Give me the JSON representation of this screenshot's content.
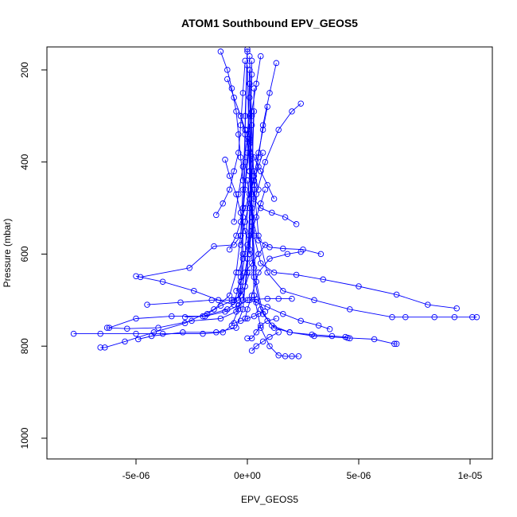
{
  "chart_data": {
    "type": "scatter",
    "title": "ATOM1 Southbound EPV_GEOS5",
    "xlabel": "EPV_GEOS5",
    "ylabel": "Pressure (mbar)",
    "xlim": [
      -9e-06,
      1.1e-05
    ],
    "ylim": [
      1045,
      150
    ],
    "y_reversed": true,
    "x_ticks": [
      {
        "value": -5e-06,
        "label": "-5e-06"
      },
      {
        "value": 0,
        "label": "0e+00"
      },
      {
        "value": 5e-06,
        "label": "5e-06"
      },
      {
        "value": 1e-05,
        "label": "1e-05"
      }
    ],
    "y_ticks": [
      {
        "value": 200,
        "label": "200"
      },
      {
        "value": 400,
        "label": "400"
      },
      {
        "value": 600,
        "label": "600"
      },
      {
        "value": 800,
        "label": "800"
      },
      {
        "value": 1000,
        "label": "1000"
      }
    ],
    "grid": false,
    "legend": "none",
    "series_color": "#0000ff",
    "marker": "open-circle",
    "connected": true,
    "series": [
      {
        "x": [
          -7.8e-06,
          -6.6e-06,
          -5e-06,
          -3.8e-06,
          -2e-06,
          -1.1e-06,
          -7e-07,
          -4e-07,
          -3e-07,
          -2e-07,
          -2e-07,
          -1e-07,
          -1e-07,
          0.0
        ],
        "y": [
          773,
          773,
          773,
          773,
          773,
          770,
          755,
          720,
          680,
          600,
          500,
          400,
          300,
          155
        ]
      },
      {
        "x": [
          -6.6e-06,
          -6.4e-06,
          -5.5e-06,
          -4.2e-06,
          -2.8e-06,
          -1.5e-06,
          -8e-07,
          -5e-07,
          -3e-07,
          -2e-07,
          -1e-07,
          0.0
        ],
        "y": [
          803,
          803,
          790,
          770,
          750,
          720,
          690,
          640,
          560,
          460,
          330,
          160
        ]
      },
      {
        "x": [
          -5e-06,
          -3.8e-06,
          -2.4e-06,
          -1.3e-06,
          -6e-07,
          -3e-07,
          -2e-07,
          0.0,
          1e-07
        ],
        "y": [
          648,
          660,
          680,
          700,
          710,
          650,
          520,
          380,
          200
        ]
      },
      {
        "x": [
          -6.2e-06,
          -5e-06,
          -3.4e-06,
          -2e-06,
          -9e-07,
          -4e-07,
          -1e-07,
          1e-07,
          2e-07
        ],
        "y": [
          760,
          740,
          735,
          735,
          720,
          700,
          600,
          420,
          180
        ]
      },
      {
        "x": [
          -4.5e-06,
          -3e-06,
          -1.6e-06,
          -7e-07,
          -3e-07,
          0.0,
          2e-07,
          3e-07
        ],
        "y": [
          710,
          705,
          700,
          700,
          690,
          610,
          470,
          240
        ]
      },
      {
        "x": [
          -4.9e-06,
          -4.3e-06,
          -2.9e-06,
          -1.4e-06,
          -5e-07,
          -2e-07,
          1e-07,
          3e-07
        ],
        "y": [
          785,
          778,
          770,
          770,
          760,
          720,
          560,
          290
        ]
      },
      {
        "x": [
          -4.8e-06,
          -2.6e-06,
          -1.5e-06,
          -6e-07,
          -3e-07,
          -1e-07,
          1e-07,
          2e-07
        ],
        "y": [
          650,
          630,
          583,
          580,
          560,
          460,
          350,
          210
        ]
      },
      {
        "x": [
          -6.3e-06,
          -5.4e-06,
          -4e-06,
          -2.5e-06,
          -1.2e-06,
          -5e-07,
          -2e-07,
          0.0,
          1e-07,
          2e-07
        ],
        "y": [
          760,
          762,
          760,
          745,
          740,
          725,
          700,
          640,
          500,
          300
        ]
      },
      {
        "x": [
          1.03e-05,
          1.01e-05,
          9.3e-06,
          8.4e-06,
          7.1e-06,
          6.5e-06,
          4.6e-06,
          3e-06,
          1.6e-06,
          9e-07,
          5e-07,
          3e-07,
          2e-07,
          1e-07
        ],
        "y": [
          737,
          737,
          737,
          737,
          737,
          737,
          720,
          700,
          680,
          640,
          560,
          450,
          320,
          170
        ]
      },
      {
        "x": [
          9.4e-06,
          8.1e-06,
          6.7e-06,
          5e-06,
          3.4e-06,
          2.2e-06,
          1.2e-06,
          6e-07,
          3e-07,
          1e-07,
          0.0
        ],
        "y": [
          718,
          710,
          688,
          670,
          655,
          645,
          640,
          620,
          560,
          420,
          190
        ]
      },
      {
        "x": [
          6.7e-06,
          6.6e-06,
          5.7e-06,
          4.5e-06,
          3e-06,
          1.9e-06,
          1.1e-06,
          6e-07,
          3e-07,
          2e-07,
          1e-07
        ],
        "y": [
          795,
          795,
          785,
          782,
          778,
          770,
          755,
          720,
          650,
          500,
          230
        ]
      },
      {
        "x": [
          4.6e-06,
          4.4e-06,
          3.8e-06,
          2.9e-06,
          1.9e-06,
          1.2e-06,
          7e-07,
          4e-07,
          2e-07,
          1e-07
        ],
        "y": [
          783,
          780,
          778,
          775,
          770,
          760,
          730,
          660,
          520,
          260
        ]
      },
      {
        "x": [
          2.3e-06,
          2e-06,
          1.7e-06,
          1.4e-06,
          1e-06,
          6e-07,
          3e-07,
          2e-07,
          1e-07
        ],
        "y": [
          822,
          822,
          822,
          820,
          800,
          760,
          690,
          520,
          300
        ]
      },
      {
        "x": [
          2.4e-06,
          2e-06,
          1.4e-06,
          8e-07,
          4e-07,
          2e-07,
          0.0
        ],
        "y": [
          273,
          290,
          330,
          400,
          470,
          540,
          610
        ]
      },
      {
        "x": [
          2.2e-06,
          1.7e-06,
          1.1e-06,
          6e-07,
          3e-07,
          1e-07,
          0.0
        ],
        "y": [
          535,
          520,
          510,
          500,
          480,
          420,
          330
        ]
      },
      {
        "x": [
          3.3e-06,
          2.5e-06,
          1.6e-06,
          1e-06,
          5e-07,
          2e-07,
          0.0
        ],
        "y": [
          600,
          590,
          588,
          585,
          570,
          520,
          440
        ]
      },
      {
        "x": [
          2.4e-06,
          1.8e-06,
          1e-06,
          5e-07,
          2e-07,
          0.0,
          -1e-07
        ],
        "y": [
          595,
          600,
          610,
          640,
          690,
          720,
          740
        ]
      },
      {
        "x": [
          3.7e-06,
          3.2e-06,
          2.4e-06,
          1.6e-06,
          9e-07,
          4e-07,
          1e-07
        ],
        "y": [
          763,
          755,
          745,
          730,
          715,
          705,
          700
        ]
      },
      {
        "x": [
          1.3e-06,
          1e-06,
          7e-07,
          5e-07,
          3e-07,
          2e-07,
          1e-07
        ],
        "y": [
          185,
          250,
          320,
          390,
          460,
          530,
          600
        ]
      },
      {
        "x": [
          -1.2e-06,
          -9e-07,
          -7e-07,
          -5e-07,
          -4e-07,
          -3e-07,
          -2e-07
        ],
        "y": [
          160,
          200,
          240,
          290,
          340,
          390,
          440
        ]
      },
      {
        "x": [
          -1.4e-06,
          -1.1e-06,
          -8e-07,
          -6e-07,
          -4e-07,
          -3e-07,
          -2e-07,
          -1e-07
        ],
        "y": [
          515,
          490,
          460,
          420,
          380,
          320,
          250,
          180
        ]
      },
      {
        "x": [
          -8e-07,
          -5e-07,
          -3e-07,
          -1e-07,
          1e-07,
          3e-07,
          5e-07,
          7e-07
        ],
        "y": [
          590,
          560,
          530,
          500,
          470,
          440,
          410,
          380
        ]
      },
      {
        "x": [
          9e-07,
          7e-07,
          5e-07,
          3e-07,
          1e-07,
          -1e-07,
          -3e-07
        ],
        "y": [
          280,
          330,
          380,
          430,
          480,
          530,
          580
        ]
      },
      {
        "x": [
          -1e-06,
          -8e-07,
          -5e-07,
          -3e-07,
          -1e-07,
          1e-07,
          3e-07
        ],
        "y": [
          395,
          430,
          470,
          510,
          550,
          590,
          630
        ]
      },
      {
        "x": [
          1.2e-06,
          9e-07,
          6e-07,
          3e-07,
          1e-07,
          -1e-07,
          -3e-07
        ],
        "y": [
          480,
          450,
          420,
          390,
          360,
          330,
          300
        ]
      },
      {
        "x": [
          -9e-07,
          -6e-07,
          -3e-07,
          -1e-07,
          1e-07,
          3e-07,
          5e-07
        ],
        "y": [
          220,
          260,
          300,
          340,
          380,
          420,
          460
        ]
      },
      {
        "x": [
          6e-07,
          4e-07,
          2e-07,
          0.0,
          -2e-07,
          -4e-07,
          -6e-07
        ],
        "y": [
          170,
          230,
          290,
          350,
          410,
          470,
          530
        ]
      },
      {
        "x": [
          -4e-07,
          -2e-07,
          0.0,
          2e-07,
          4e-07,
          6e-07,
          8e-07
        ],
        "y": [
          640,
          610,
          580,
          550,
          520,
          490,
          460
        ]
      },
      {
        "x": [
          -1.8e-06,
          -1.2e-06,
          -6e-07,
          -3e-07,
          -1e-07,
          1e-07
        ],
        "y": [
          730,
          712,
          700,
          690,
          670,
          640
        ]
      },
      {
        "x": [
          -2.8e-06,
          -1.9e-06,
          -1e-06,
          -4e-07,
          0.0,
          4e-07,
          9e-07,
          1.4e-06,
          2e-06
        ],
        "y": [
          737,
          735,
          725,
          712,
          700,
          698,
          697,
          697,
          697
        ]
      },
      {
        "x": [
          -6e-07,
          -3e-07,
          0.0,
          3e-07,
          5e-07,
          8e-07
        ],
        "y": [
          750,
          745,
          740,
          735,
          730,
          725
        ]
      },
      {
        "x": [
          0.0,
          2e-07,
          4e-07,
          6e-07,
          9e-07,
          1.3e-06
        ],
        "y": [
          783,
          783,
          770,
          755,
          745,
          740
        ]
      },
      {
        "x": [
          -5e-07,
          -3e-07,
          -1e-07,
          2e-07,
          5e-07,
          8e-07
        ],
        "y": [
          680,
          660,
          640,
          620,
          600,
          580
        ]
      },
      {
        "x": [
          2e-07,
          4e-07,
          7e-07,
          1e-06,
          1.4e-06
        ],
        "y": [
          810,
          800,
          790,
          780,
          770
        ]
      }
    ]
  }
}
